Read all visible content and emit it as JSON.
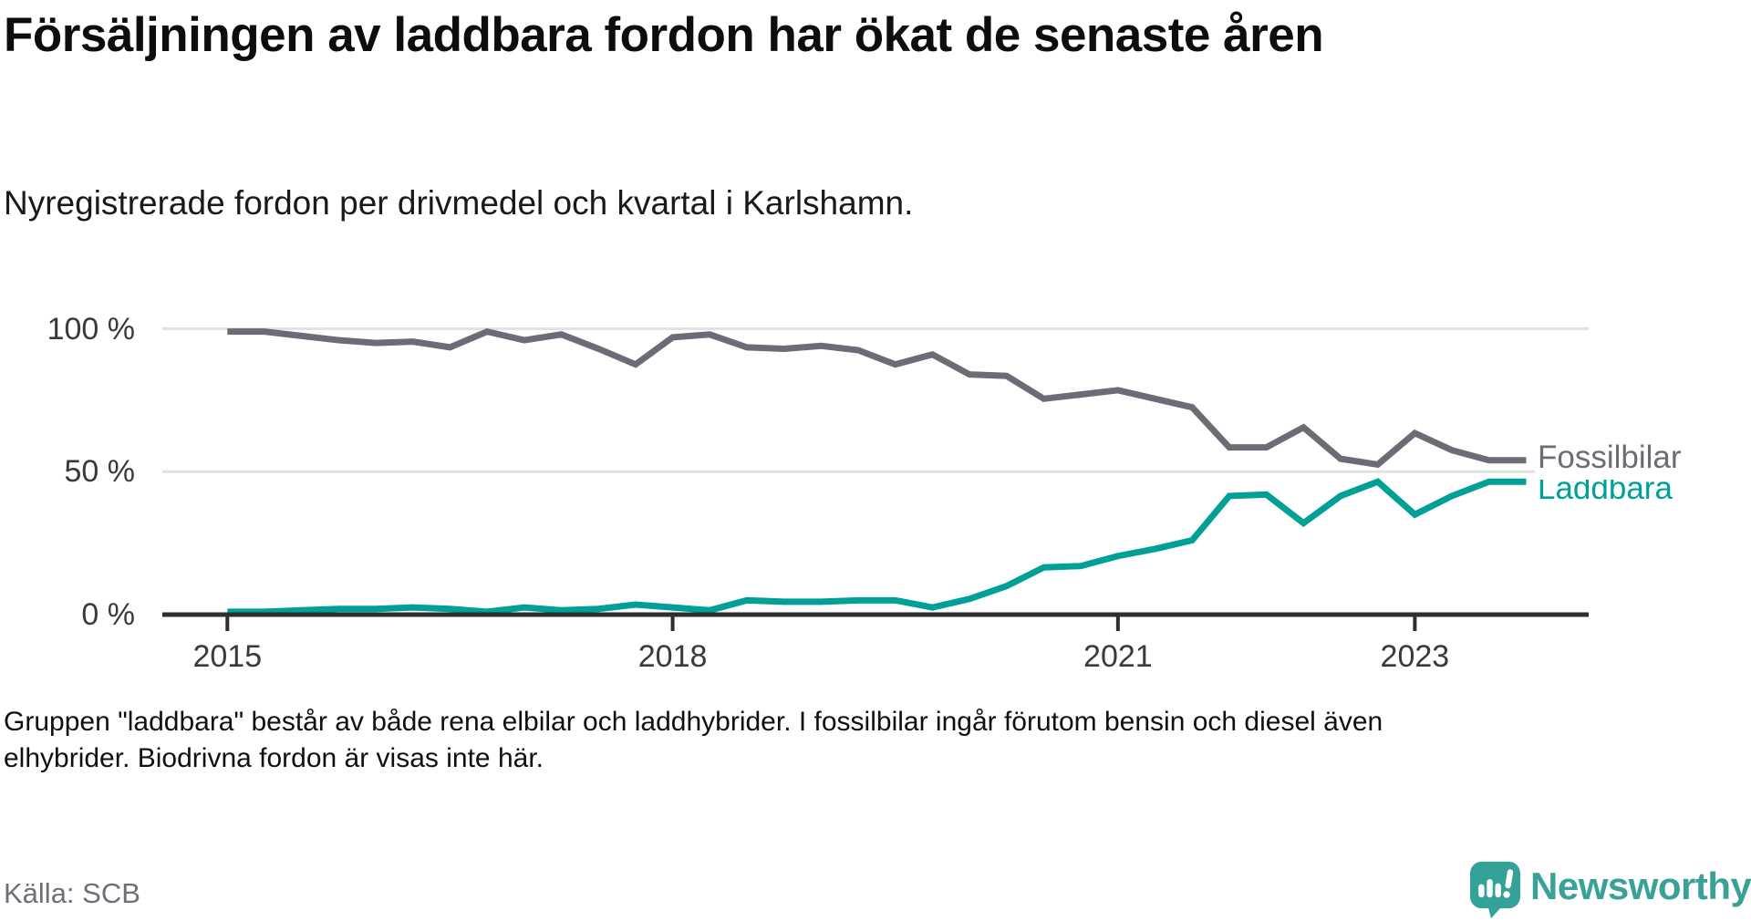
{
  "header": {
    "title": "Försäljningen av laddbara fordon har ökat de senaste åren",
    "subtitle": "Nyregistrerade fordon per drivmedel och kvartal i Karlshamn."
  },
  "chart_data": {
    "type": "line",
    "title": "Försäljningen av laddbara fordon har ökat de senaste åren",
    "xlabel": "",
    "ylabel": "",
    "ylim": [
      0,
      100
    ],
    "grid": "horizontal",
    "legend_position": "right-end-labels",
    "y_ticks": [
      {
        "value": 100,
        "label": "100 %"
      },
      {
        "value": 50,
        "label": "50 %"
      },
      {
        "value": 0,
        "label": "0 %"
      }
    ],
    "x_ticks": [
      {
        "index": 0,
        "label": "2015"
      },
      {
        "index": 12,
        "label": "2018"
      },
      {
        "index": 24,
        "label": "2021"
      },
      {
        "index": 32,
        "label": "2023"
      }
    ],
    "categories": [
      "2015K1",
      "2015K2",
      "2015K3",
      "2015K4",
      "2016K1",
      "2016K2",
      "2016K3",
      "2016K4",
      "2017K1",
      "2017K2",
      "2017K3",
      "2017K4",
      "2018K1",
      "2018K2",
      "2018K3",
      "2018K4",
      "2019K1",
      "2019K2",
      "2019K3",
      "2019K4",
      "2020K1",
      "2020K2",
      "2020K3",
      "2020K4",
      "2021K1",
      "2021K2",
      "2021K3",
      "2021K4",
      "2022K1",
      "2022K2",
      "2022K3",
      "2022K4",
      "2023K1",
      "2023K2",
      "2023K3",
      "2023K4"
    ],
    "series": [
      {
        "name": "Fossilbilar",
        "color": "#6f6b76",
        "values": [
          99,
          99,
          97.5,
          96,
          95,
          95.5,
          93.5,
          99,
          96,
          98,
          93,
          87.5,
          97,
          98,
          93.5,
          93,
          94,
          92.5,
          87.5,
          91,
          84,
          83.5,
          75.5,
          77,
          78.5,
          75.5,
          72.5,
          58.5,
          58.5,
          65.5,
          54.5,
          52.5,
          63.5,
          57.5,
          54,
          54
        ]
      },
      {
        "name": "Laddbara",
        "color": "#00a096",
        "values": [
          1,
          1,
          1.5,
          2,
          2,
          2.5,
          2,
          1,
          2.5,
          1.5,
          2,
          3.5,
          2.5,
          1.5,
          5,
          4.5,
          4.5,
          5,
          5,
          2.5,
          5.5,
          10,
          16.5,
          17,
          20.5,
          23,
          26,
          41.5,
          42,
          32,
          41.5,
          46.5,
          35,
          41.5,
          46.5,
          46.5
        ]
      }
    ],
    "colors": {
      "gridline": "#e2e2e2",
      "axis": "#2e2e2e",
      "tick_text": "#3a3a3a"
    }
  },
  "footnote": {
    "text": "Gruppen \"laddbara\" består av både rena elbilar och laddhybrider. I fossilbilar ingår förutom bensin och diesel även elhybrider. Biodrivna fordon är visas inte här."
  },
  "source": {
    "label": "Källa: SCB"
  },
  "branding": {
    "logo_text": "Newsworthy",
    "logo_icon": "newsworthy-speech-bubble-chart-icon",
    "color": "#3aa199"
  }
}
